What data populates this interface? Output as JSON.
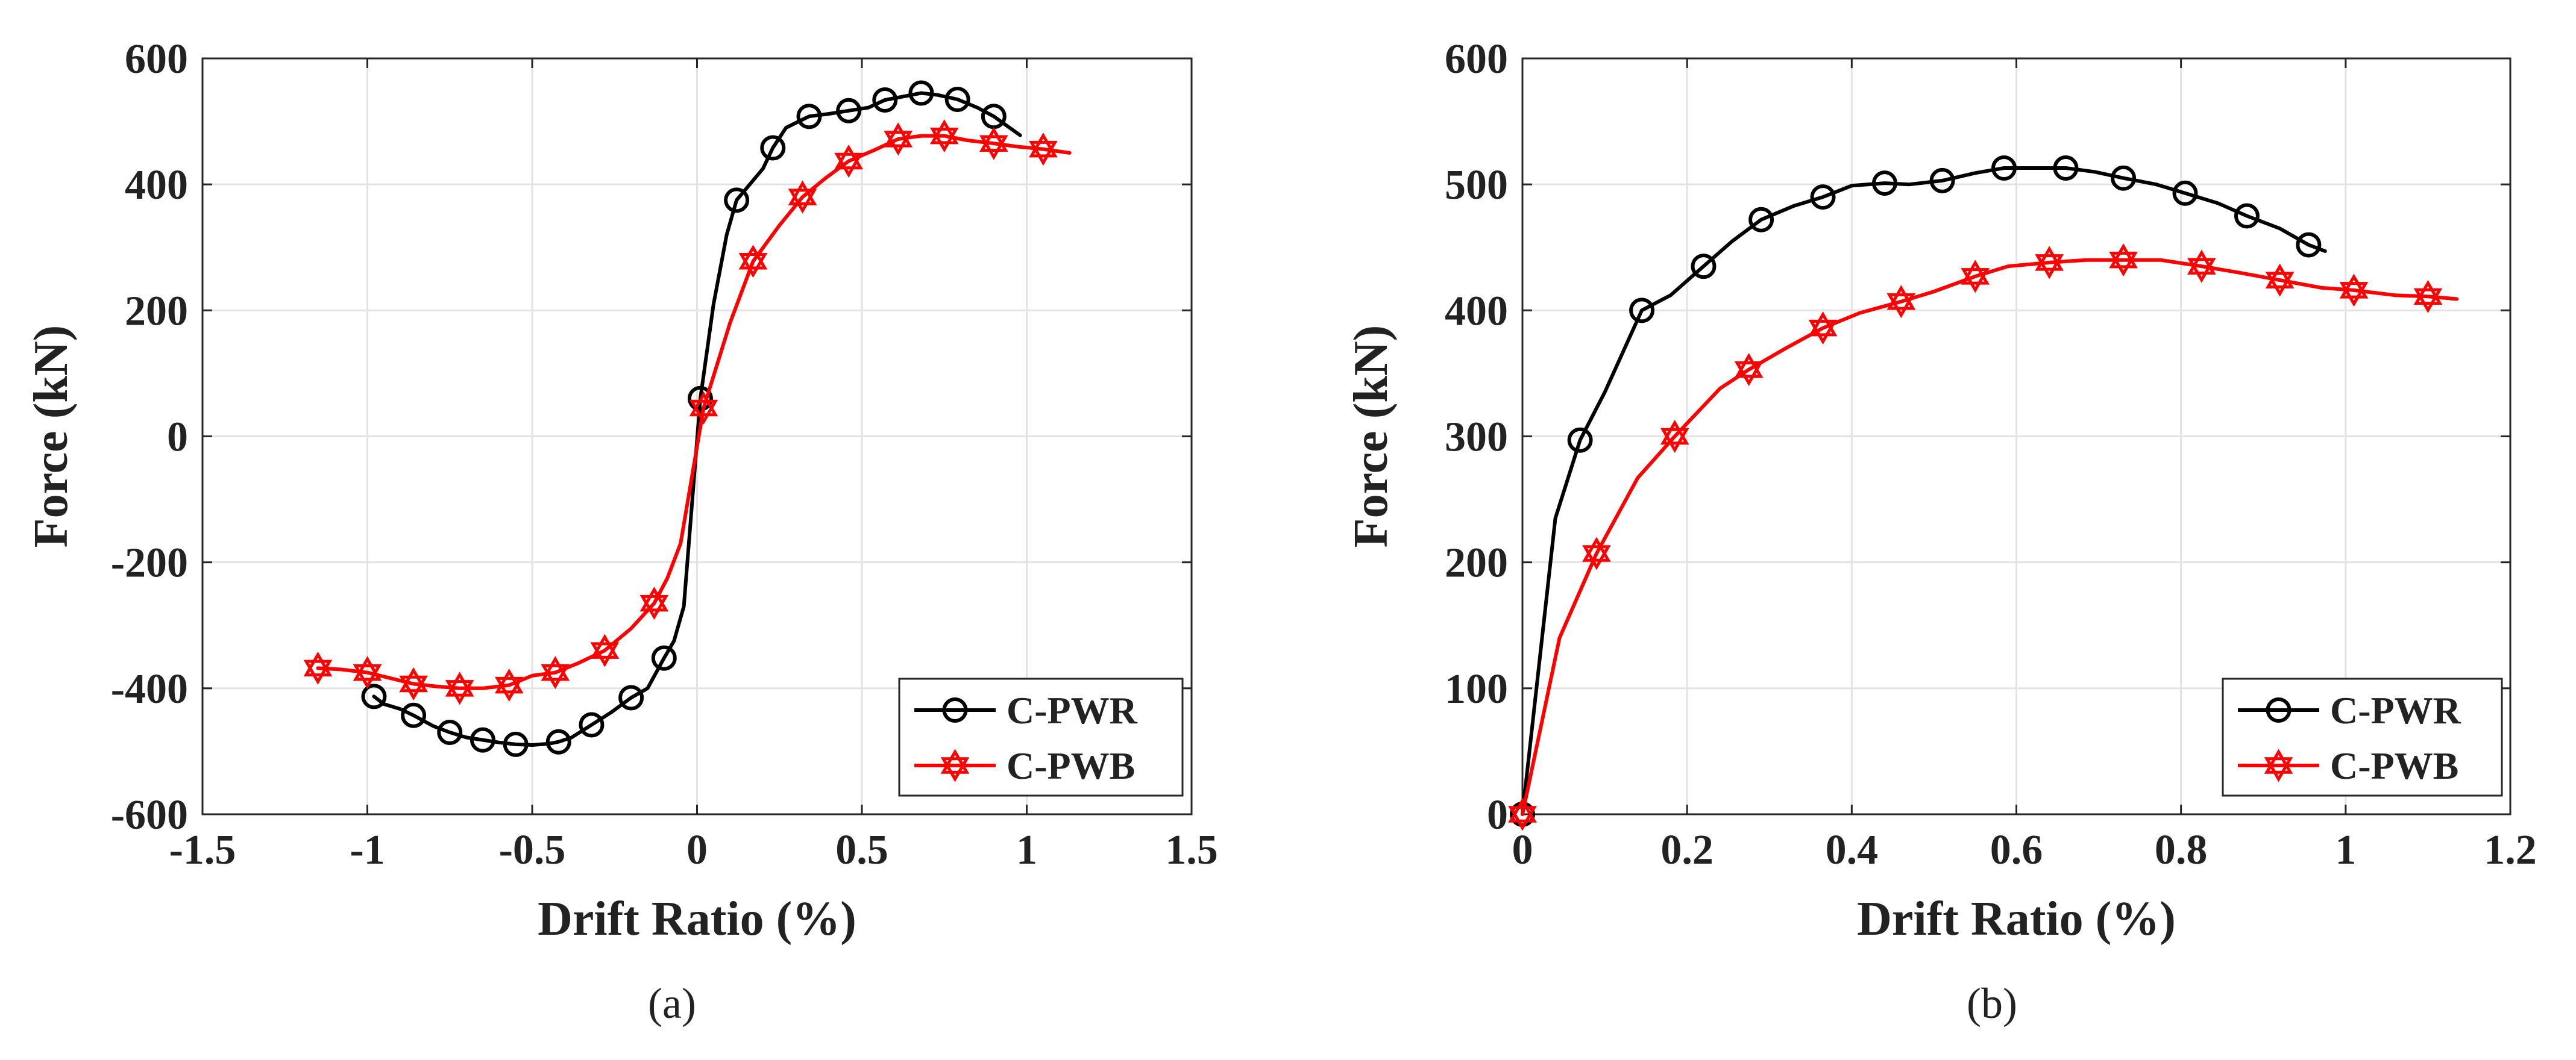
{
  "chart_data": [
    {
      "type": "line",
      "panel_label": "(a)",
      "xlabel": "Drift Ratio (%)",
      "ylabel": "Force (kN)",
      "xlim": [
        -1.5,
        1.5
      ],
      "ylim": [
        -600,
        600
      ],
      "xticks": [
        -1.5,
        -1,
        -0.5,
        0,
        0.5,
        1,
        1.5
      ],
      "xtick_labels": [
        "-1.5",
        "-1",
        "-0.5",
        "0",
        "0.5",
        "1",
        "1.5"
      ],
      "yticks": [
        -600,
        -400,
        -200,
        0,
        200,
        400,
        600
      ],
      "ytick_labels": [
        "-600",
        "-400",
        "-200",
        "0",
        "200",
        "400",
        "600"
      ],
      "grid": true,
      "legend_position": "bottom-right",
      "series": [
        {
          "name": "C-PWR",
          "color": "#000000",
          "marker": "circle",
          "x": [
            -0.98,
            -0.95,
            -0.9,
            -0.86,
            -0.8,
            -0.75,
            -0.7,
            -0.65,
            -0.6,
            -0.55,
            -0.5,
            -0.45,
            -0.42,
            -0.38,
            -0.32,
            -0.26,
            -0.2,
            -0.15,
            -0.1,
            -0.07,
            -0.04,
            0.01,
            0.05,
            0.09,
            0.12,
            0.16,
            0.2,
            0.23,
            0.27,
            0.34,
            0.4,
            0.46,
            0.52,
            0.57,
            0.63,
            0.68,
            0.73,
            0.79,
            0.85,
            0.9,
            0.98
          ],
          "y": [
            -413,
            -425,
            -433,
            -443,
            -460,
            -470,
            -478,
            -482,
            -486,
            -489,
            -490,
            -488,
            -485,
            -478,
            -458,
            -438,
            -415,
            -400,
            -352,
            -325,
            -270,
            60,
            210,
            320,
            375,
            400,
            425,
            458,
            490,
            508,
            512,
            517,
            522,
            534,
            540,
            545,
            542,
            535,
            522,
            508,
            478
          ],
          "marker_indices": [
            0,
            3,
            5,
            7,
            9,
            12,
            14,
            16,
            18,
            21,
            24,
            27,
            29,
            31,
            33,
            35,
            37,
            39
          ]
        },
        {
          "name": "C-PWB",
          "color": "#ff0000",
          "marker": "hexagram",
          "x": [
            -1.15,
            -1.08,
            -1.0,
            -0.93,
            -0.86,
            -0.79,
            -0.72,
            -0.65,
            -0.57,
            -0.5,
            -0.43,
            -0.36,
            -0.28,
            -0.2,
            -0.13,
            -0.09,
            -0.05,
            0.02,
            0.1,
            0.17,
            0.25,
            0.32,
            0.39,
            0.46,
            0.54,
            0.61,
            0.68,
            0.75,
            0.82,
            0.9,
            0.97,
            1.05,
            1.13
          ],
          "y": [
            -368,
            -370,
            -375,
            -384,
            -393,
            -397,
            -400,
            -400,
            -395,
            -380,
            -375,
            -360,
            -340,
            -305,
            -265,
            -225,
            -170,
            45,
            180,
            278,
            335,
            380,
            410,
            437,
            455,
            472,
            477,
            477,
            470,
            465,
            460,
            456,
            450
          ],
          "marker_indices": [
            0,
            2,
            4,
            6,
            8,
            10,
            12,
            14,
            17,
            19,
            21,
            23,
            25,
            27,
            29,
            31
          ]
        }
      ]
    },
    {
      "type": "line",
      "panel_label": "(b)",
      "xlabel": "Drift Ratio (%)",
      "ylabel": "Force (kN)",
      "xlim": [
        0,
        1.2
      ],
      "ylim": [
        0,
        600
      ],
      "xticks": [
        0,
        0.2,
        0.4,
        0.6,
        0.8,
        1,
        1.2
      ],
      "xtick_labels": [
        "0",
        "0.2",
        "0.4",
        "0.6",
        "0.8",
        "1",
        "1.2"
      ],
      "yticks": [
        0,
        100,
        200,
        300,
        400,
        500,
        600
      ],
      "ytick_labels": [
        "0",
        "100",
        "200",
        "300",
        "400",
        "500",
        "600"
      ],
      "grid": true,
      "legend_position": "bottom-right",
      "series": [
        {
          "name": "C-PWR",
          "color": "#000000",
          "marker": "circle",
          "x": [
            0,
            0.04,
            0.07,
            0.1,
            0.145,
            0.18,
            0.22,
            0.255,
            0.29,
            0.33,
            0.365,
            0.4,
            0.44,
            0.47,
            0.51,
            0.55,
            0.585,
            0.62,
            0.66,
            0.695,
            0.73,
            0.77,
            0.805,
            0.845,
            0.88,
            0.92,
            0.955,
            0.975
          ],
          "y": [
            0,
            235,
            297,
            335,
            400,
            412,
            435,
            455,
            472,
            483,
            490,
            499,
            501,
            500,
            503,
            509,
            513,
            513,
            513,
            510,
            505,
            500,
            493,
            485,
            475,
            465,
            452,
            447
          ],
          "marker_indices": [
            0,
            2,
            4,
            6,
            8,
            10,
            12,
            14,
            16,
            18,
            20,
            22,
            24,
            26
          ]
        },
        {
          "name": "C-PWB",
          "color": "#ff0000",
          "marker": "hexagram",
          "x": [
            0,
            0.045,
            0.09,
            0.14,
            0.185,
            0.24,
            0.275,
            0.32,
            0.365,
            0.41,
            0.46,
            0.5,
            0.55,
            0.59,
            0.64,
            0.685,
            0.73,
            0.775,
            0.825,
            0.87,
            0.92,
            0.97,
            1.01,
            1.06,
            1.1,
            1.135
          ],
          "y": [
            0,
            140,
            207,
            267,
            300,
            338,
            353,
            370,
            386,
            398,
            407,
            415,
            427,
            435,
            438,
            440,
            440,
            440,
            435,
            430,
            424,
            418,
            416,
            412,
            411,
            409
          ],
          "marker_indices": [
            0,
            2,
            4,
            6,
            8,
            10,
            12,
            14,
            16,
            18,
            20,
            22,
            24
          ]
        }
      ]
    }
  ]
}
